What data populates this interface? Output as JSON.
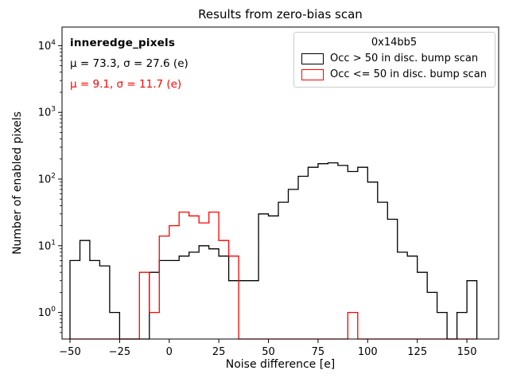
{
  "annotations": {
    "dataset": "inneredge_pixels",
    "stats_black": "μ = 73.3, σ = 27.6 (e)",
    "stats_red": "μ = 9.1, σ = 11.7 (e)"
  },
  "chart_data": {
    "type": "histogram",
    "title": "Results from zero-bias scan",
    "xlabel": "Noise difference [e]",
    "ylabel": "Number of enabled pixels",
    "y_scale": "log",
    "grid": false,
    "xlim": [
      -54,
      166
    ],
    "ylim": [
      0.4,
      19000
    ],
    "x_ticks": [
      -50,
      -25,
      0,
      25,
      50,
      75,
      100,
      125,
      150
    ],
    "y_tick_exponents": [
      0,
      1,
      2,
      3,
      4
    ],
    "bin_start": -50,
    "bin_width": 5,
    "legend_title": "0x14bb5",
    "legend_position": "upper right",
    "series": [
      {
        "name": "Occ > 50 in disc. bump scan",
        "color": "#000000",
        "values": [
          6,
          12,
          6,
          5,
          1,
          0,
          0,
          0,
          4,
          6,
          6,
          7,
          8,
          10,
          9,
          7,
          3,
          3,
          3,
          30,
          28,
          45,
          70,
          110,
          150,
          170,
          175,
          160,
          130,
          150,
          90,
          45,
          25,
          8,
          7,
          4,
          2,
          1,
          0,
          1,
          3
        ]
      },
      {
        "name": "Occ <= 50 in disc. bump scan",
        "color": "#ff0000",
        "values": [
          0,
          0,
          0,
          0,
          0,
          0,
          0,
          4,
          1,
          14,
          20,
          32,
          28,
          22,
          32,
          12,
          7,
          0,
          0,
          0,
          0,
          0,
          0,
          0,
          0,
          0,
          0,
          0,
          1,
          0,
          0,
          0,
          0,
          0,
          0,
          0,
          0,
          0,
          0,
          0,
          0
        ]
      }
    ]
  }
}
